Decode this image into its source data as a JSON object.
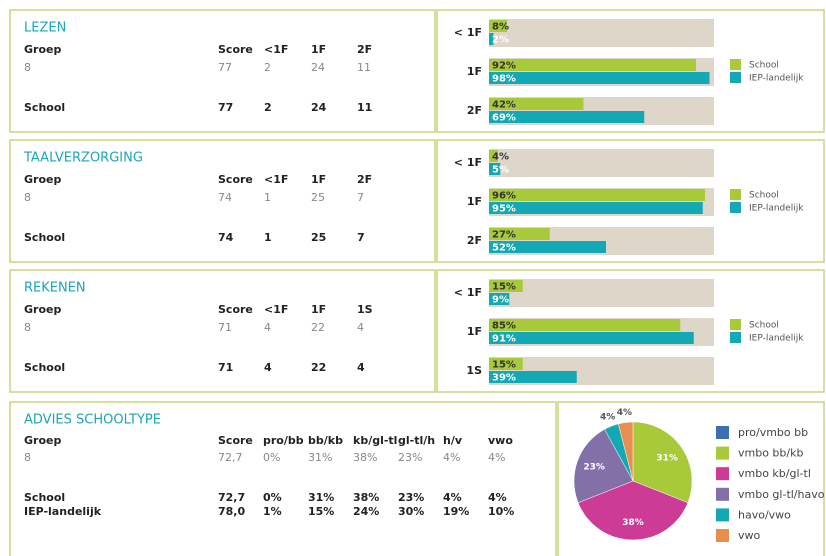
{
  "sections": [
    {
      "title": "LEZEN",
      "table": {
        "header": [
          "Groep",
          "Score",
          "<1F",
          "1F",
          "2F"
        ],
        "rows": [
          [
            "8",
            "77",
            "2",
            "24",
            "11"
          ],
          [
            "School",
            "77",
            "2",
            "24",
            "11"
          ]
        ]
      },
      "chart": {
        "type": "bar",
        "categories": [
          "< 1F",
          "1F",
          "2F"
        ],
        "xlim": [
          0,
          100
        ],
        "series": [
          {
            "name": "School",
            "color": "#a8c93a",
            "values": [
              8,
              92,
              42
            ],
            "value_labels": [
              "8%",
              "92%",
              "42%"
            ]
          },
          {
            "name": "IEP-landelijk",
            "color": "#13a8b4",
            "values": [
              2,
              98,
              69
            ],
            "value_labels": [
              "2%",
              "98%",
              "69%"
            ]
          }
        ]
      }
    },
    {
      "title": "TAALVERZORGING",
      "table": {
        "header": [
          "Groep",
          "Score",
          "<1F",
          "1F",
          "2F"
        ],
        "rows": [
          [
            "8",
            "74",
            "1",
            "25",
            "7"
          ],
          [
            "School",
            "74",
            "1",
            "25",
            "7"
          ]
        ]
      },
      "chart": {
        "type": "bar",
        "categories": [
          "< 1F",
          "1F",
          "2F"
        ],
        "xlim": [
          0,
          100
        ],
        "series": [
          {
            "name": "School",
            "color": "#a8c93a",
            "values": [
              4,
              96,
              27
            ],
            "value_labels": [
              "4%",
              "96%",
              "27%"
            ]
          },
          {
            "name": "IEP-landelijk",
            "color": "#13a8b4",
            "values": [
              5,
              95,
              52
            ],
            "value_labels": [
              "5%",
              "95%",
              "52%"
            ]
          }
        ]
      }
    },
    {
      "title": "REKENEN",
      "table": {
        "header": [
          "Groep",
          "Score",
          "<1F",
          "1F",
          "1S"
        ],
        "rows": [
          [
            "8",
            "71",
            "4",
            "22",
            "4"
          ],
          [
            "School",
            "71",
            "4",
            "22",
            "4"
          ]
        ]
      },
      "chart": {
        "type": "bar",
        "categories": [
          "< 1F",
          "1F",
          "1S"
        ],
        "xlim": [
          0,
          100
        ],
        "series": [
          {
            "name": "School",
            "color": "#a8c93a",
            "values": [
              15,
              85,
              15
            ],
            "value_labels": [
              "15%",
              "85%",
              "15%"
            ]
          },
          {
            "name": "IEP-landelijk",
            "color": "#13a8b4",
            "values": [
              9,
              91,
              39
            ],
            "value_labels": [
              "9%",
              "91%",
              "39%"
            ]
          }
        ]
      }
    }
  ],
  "advies": {
    "title": "ADVIES SCHOOLTYPE",
    "table": {
      "header": [
        "Groep",
        "Score",
        "pro/bb",
        "bb/kb",
        "kb/gl-tl",
        "gl-tl/h",
        "h/v",
        "vwo"
      ],
      "rows": [
        [
          "8",
          "72,7",
          "0%",
          "31%",
          "38%",
          "23%",
          "4%",
          "4%"
        ],
        [
          "School",
          "72,7",
          "0%",
          "31%",
          "38%",
          "23%",
          "4%",
          "4%"
        ],
        [
          "IEP-landelijk",
          "78,0",
          "1%",
          "15%",
          "24%",
          "30%",
          "19%",
          "10%"
        ]
      ]
    },
    "chart": {
      "type": "pie",
      "categories": [
        "pro/vmbo bb",
        "vmbo bb/kb",
        "vmbo kb/gl-tl",
        "vmbo gl-tl/havo",
        "havo/vwo",
        "vwo"
      ],
      "values": [
        0,
        31,
        38,
        23,
        4,
        4
      ],
      "value_labels": [
        null,
        "31%",
        "38%",
        "23%",
        "4%",
        "4%"
      ],
      "colors": [
        "#3a6fb0",
        "#a8c93a",
        "#cc3b96",
        "#8470a8",
        "#13a8b4",
        "#e88f4f"
      ]
    }
  }
}
